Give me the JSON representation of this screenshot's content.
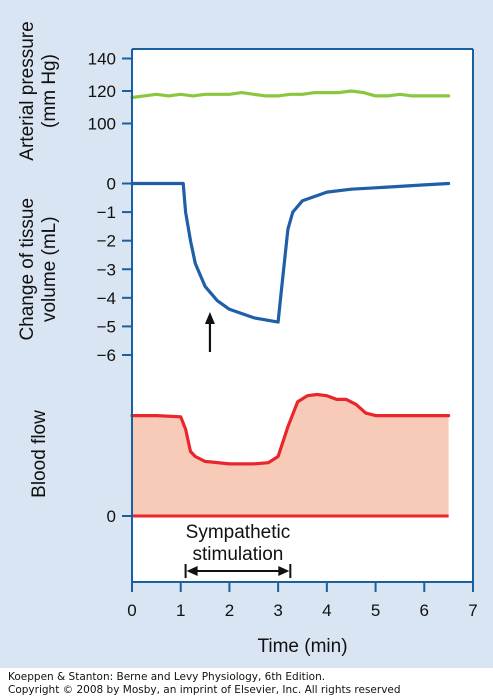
{
  "chart_data": [
    {
      "type": "line",
      "panel": "arterial-pressure",
      "ylabel_lines": [
        "Arterial pressure",
        "(mm Hg)"
      ],
      "yticks": [
        100,
        120,
        140
      ],
      "ylim": [
        100,
        140
      ],
      "color": "#8cc63f",
      "x": [
        0,
        0.25,
        0.5,
        0.75,
        1,
        1.25,
        1.5,
        1.75,
        2,
        2.25,
        2.5,
        2.75,
        3,
        3.25,
        3.5,
        3.75,
        4,
        4.25,
        4.5,
        4.75,
        5,
        5.25,
        5.5,
        5.75,
        6,
        6.25,
        6.5
      ],
      "values": [
        116,
        117,
        118,
        117,
        118,
        117,
        118,
        118,
        118,
        119,
        118,
        117,
        117,
        118,
        118,
        119,
        119,
        119,
        120,
        119,
        117,
        117,
        118,
        117,
        117,
        117,
        117
      ]
    },
    {
      "type": "line",
      "panel": "tissue-volume",
      "ylabel_lines": [
        "Change of tissue",
        "volume (mL)"
      ],
      "yticks": [
        0,
        -1,
        -2,
        -3,
        -4,
        -5,
        -6
      ],
      "ytick_labels": [
        "0",
        "−1",
        "−2",
        "−3",
        "−4",
        "−5",
        "−6"
      ],
      "ylim": [
        -6,
        0
      ],
      "color": "#1f5fa8",
      "x": [
        0,
        0.5,
        1.05,
        1.1,
        1.2,
        1.3,
        1.5,
        1.75,
        2.0,
        2.5,
        3.0,
        3.05,
        3.2,
        3.3,
        3.5,
        4.0,
        4.5,
        5.0,
        6.0,
        6.5
      ],
      "values": [
        0,
        0,
        0,
        -1.0,
        -2.0,
        -2.8,
        -3.6,
        -4.1,
        -4.4,
        -4.7,
        -4.85,
        -4.0,
        -1.6,
        -1.0,
        -0.6,
        -0.3,
        -0.2,
        -0.15,
        -0.05,
        0
      ]
    },
    {
      "type": "area",
      "panel": "blood-flow",
      "ylabel_lines": [
        "Blood flow"
      ],
      "yticks": [
        0
      ],
      "ylim": [
        0,
        1
      ],
      "color": "#e8262c",
      "fill_color": "#f8cbb8",
      "x": [
        0,
        0.5,
        1.0,
        1.1,
        1.2,
        1.3,
        1.5,
        2.0,
        2.5,
        2.8,
        3.0,
        3.2,
        3.4,
        3.6,
        3.8,
        4.0,
        4.2,
        4.4,
        4.6,
        4.8,
        5.0,
        5.5,
        6.0,
        6.5
      ],
      "values": [
        0.81,
        0.81,
        0.8,
        0.7,
        0.52,
        0.48,
        0.44,
        0.42,
        0.42,
        0.43,
        0.48,
        0.72,
        0.92,
        0.97,
        0.98,
        0.97,
        0.94,
        0.94,
        0.9,
        0.83,
        0.81,
        0.81,
        0.81,
        0.81
      ]
    }
  ],
  "x_axis": {
    "label": "Time (min)",
    "ticks": [
      0,
      1,
      2,
      3,
      4,
      5,
      6,
      7
    ],
    "xlim": [
      0,
      7
    ]
  },
  "annotations": {
    "arrow_at_time": 1.6,
    "stimulation_lines": [
      "Sympathetic",
      "stimulation"
    ],
    "stimulation_range": [
      1.1,
      3.25
    ]
  },
  "colors": {
    "background": "#d9e5f3",
    "plot_background": "#ffffff",
    "axis": "#1a5fa0"
  },
  "credit": {
    "line1": "Koeppen & Stanton: Berne and Levy Physiology, 6th Edition.",
    "line2": "Copyright © 2008 by Mosby, an imprint of Elsevier, Inc. All rights reserved"
  }
}
